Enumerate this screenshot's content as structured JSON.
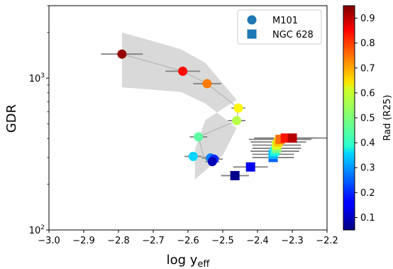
{
  "chart_data": {
    "type": "scatter",
    "title": "",
    "xlabel": "log y",
    "xlabel_sub": "eff",
    "ylabel": "GDR",
    "xscale": "linear",
    "yscale": "log",
    "xlim": [
      -3.0,
      -2.2
    ],
    "ylim": [
      100,
      3000
    ],
    "xticks": [
      -3.0,
      -2.9,
      -2.8,
      -2.7,
      -2.6,
      -2.5,
      -2.4,
      -2.3,
      -2.2
    ],
    "xtick_labels": [
      "−3.0",
      "−2.9",
      "−2.8",
      "−2.7",
      "−2.6",
      "−2.5",
      "−2.4",
      "−2.3",
      "−2.2"
    ],
    "ytick_labels": [
      {
        "value": 100,
        "base": "10",
        "exp": "2"
      },
      {
        "value": 1000,
        "base": "10",
        "exp": "3"
      }
    ],
    "grid": false,
    "legend_position": "top-right",
    "legend": [
      {
        "label": "M101",
        "marker": "circle",
        "color": "#1f77b4"
      },
      {
        "label": "NGC 628",
        "marker": "square",
        "color": "#1f77b4"
      }
    ],
    "colorbar": {
      "label": "Rad (R25)",
      "colormap": "jet",
      "range": [
        0.05,
        0.95
      ],
      "ticks": [
        0.1,
        0.2,
        0.3,
        0.4,
        0.5,
        0.6,
        0.7,
        0.8,
        0.9
      ],
      "tick_labels": [
        "0.1",
        "0.2",
        "0.3",
        "0.4",
        "0.5",
        "0.6",
        "0.7",
        "0.8",
        "0.9"
      ]
    },
    "band": {
      "fill": "#d9d9d9",
      "upper": [
        [
          -2.79,
          2000
        ],
        [
          -2.62,
          1550
        ],
        [
          -2.55,
          1260
        ],
        [
          -2.46,
          720
        ],
        [
          -2.55,
          530
        ],
        [
          -2.58,
          340
        ]
      ],
      "lower": [
        [
          -2.79,
          870
        ],
        [
          -2.62,
          810
        ],
        [
          -2.55,
          680
        ],
        [
          -2.46,
          470
        ],
        [
          -2.5,
          310
        ],
        [
          -2.58,
          215
        ]
      ]
    },
    "trend_line": {
      "color": "#b4b4b4",
      "points": [
        [
          -2.79,
          1440
        ],
        [
          -2.615,
          1110
        ],
        [
          -2.545,
          920
        ],
        [
          -2.455,
          635
        ],
        [
          -2.46,
          525
        ],
        [
          -2.57,
          410
        ],
        [
          -2.555,
          305
        ],
        [
          -2.53,
          295
        ]
      ]
    },
    "series": [
      {
        "name": "M101",
        "marker": "circle",
        "points": [
          {
            "x": -2.79,
            "y": 1440,
            "xerr": 0.06,
            "rad": 0.93
          },
          {
            "x": -2.615,
            "y": 1110,
            "xerr": 0.05,
            "rad": 0.83
          },
          {
            "x": -2.545,
            "y": 920,
            "xerr": 0.04,
            "rad": 0.73
          },
          {
            "x": -2.455,
            "y": 635,
            "xerr": 0.02,
            "rad": 0.62
          },
          {
            "x": -2.46,
            "y": 525,
            "xerr": 0.025,
            "rad": 0.55
          },
          {
            "x": -2.57,
            "y": 410,
            "xerr": 0.025,
            "rad": 0.47
          },
          {
            "x": -2.585,
            "y": 305,
            "xerr": 0.025,
            "rad": 0.35
          },
          {
            "x": -2.535,
            "y": 298,
            "xerr": 0.025,
            "rad": 0.28
          },
          {
            "x": -2.525,
            "y": 293,
            "xerr": 0.025,
            "rad": 0.2
          },
          {
            "x": -2.53,
            "y": 282,
            "xerr": 0.02,
            "rad": 0.1
          }
        ]
      },
      {
        "name": "NGC 628",
        "marker": "square",
        "points": [
          {
            "x": -2.465,
            "y": 228,
            "xerr": 0.04,
            "rad": 0.06
          },
          {
            "x": -2.42,
            "y": 260,
            "xerr": 0.05,
            "rad": 0.15
          },
          {
            "x": -2.355,
            "y": 300,
            "xerr": 0.06,
            "rad": 0.25
          },
          {
            "x": -2.355,
            "y": 315,
            "xerr": 0.06,
            "rad": 0.33
          },
          {
            "x": -2.35,
            "y": 330,
            "xerr": 0.07,
            "rad": 0.42
          },
          {
            "x": -2.345,
            "y": 345,
            "xerr": 0.07,
            "rad": 0.5
          },
          {
            "x": -2.345,
            "y": 362,
            "xerr": 0.07,
            "rad": 0.58
          },
          {
            "x": -2.34,
            "y": 380,
            "xerr": 0.08,
            "rad": 0.66
          },
          {
            "x": -2.335,
            "y": 395,
            "xerr": 0.09,
            "rad": 0.74
          },
          {
            "x": -2.32,
            "y": 403,
            "xerr": 0.09,
            "rad": 0.82
          },
          {
            "x": -2.3,
            "y": 403,
            "xerr": 0.1,
            "rad": 0.9
          }
        ]
      }
    ]
  }
}
